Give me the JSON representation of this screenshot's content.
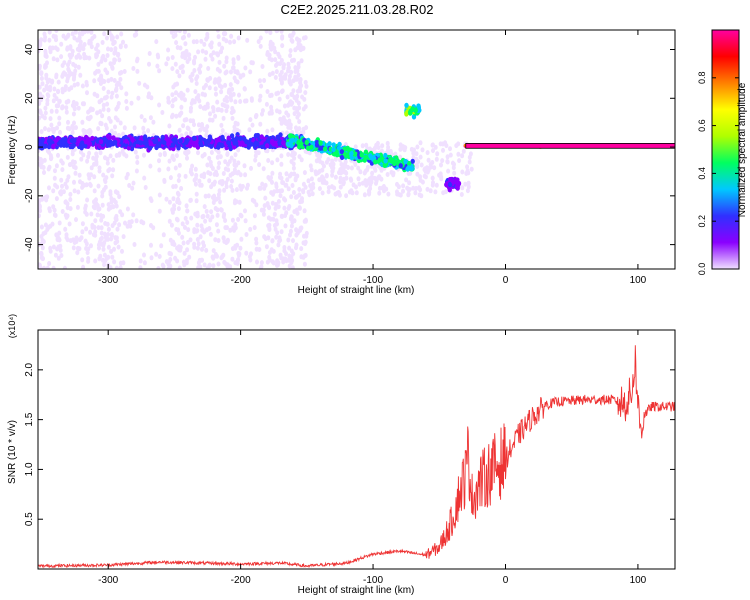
{
  "title": "C2E2.2025.211.03.28.R02",
  "chart_data": [
    {
      "type": "heatmap",
      "xlabel": "Height of straight line (km)",
      "ylabel": "Frequency (Hz)",
      "xlim": [
        -353,
        128
      ],
      "ylim": [
        -50,
        48
      ],
      "xticks": [
        -300,
        -200,
        -100,
        0,
        100
      ],
      "yticks": [
        40,
        20,
        0,
        -20,
        -40
      ],
      "colorbar": {
        "label": "Normalized spectral amplitude",
        "range": [
          0,
          1
        ],
        "ticks": [
          "0.0",
          "0.2",
          "0.4",
          "0.6",
          "0.8"
        ],
        "tick_values": [
          0,
          0.2,
          0.4,
          0.6,
          0.8
        ],
        "colors": [
          "#f0e0ff",
          "#8a00ff",
          "#3030ff",
          "#00c8ff",
          "#00ff60",
          "#b0ff00",
          "#ffff00",
          "#ff8000",
          "#ff0000",
          "#ff00a0"
        ]
      },
      "features": [
        {
          "x_range": [
            -353,
            -150
          ],
          "y": 2,
          "amplitude": 0.25
        },
        {
          "x_range": [
            -165,
            -70
          ],
          "y_start": 3,
          "y_end": -8,
          "amplitude": 0.45
        },
        {
          "x_range": [
            -75,
            -65
          ],
          "y": 15,
          "amplitude": 0.5
        },
        {
          "x_range": [
            -45,
            -35
          ],
          "y": -15,
          "amplitude": 0.2
        },
        {
          "x_range": [
            -30,
            128
          ],
          "y": 0.5,
          "amplitude": 0.95
        }
      ]
    },
    {
      "type": "line",
      "xlabel": "Height of straight line (km)",
      "ylabel": "SNR (10 * v/v)",
      "yscale_label": "(x10⁴)",
      "xlim": [
        -353,
        128
      ],
      "ylim": [
        0,
        2.4
      ],
      "xticks": [
        -300,
        -200,
        -100,
        0,
        100
      ],
      "yticks": [
        0.5,
        1.0,
        1.5,
        2.0
      ],
      "ytick_labels": [
        "0.5",
        "1.0",
        "1.5",
        "2.0"
      ],
      "color": "#ee3333",
      "x": [
        -353,
        -300,
        -260,
        -200,
        -170,
        -150,
        -120,
        -100,
        -80,
        -60,
        -50,
        -45,
        -40,
        -35,
        -30,
        -28,
        -25,
        -20,
        -10,
        0,
        10,
        20,
        25,
        30,
        40,
        60,
        80,
        90,
        95,
        98,
        100,
        102,
        105,
        110,
        128
      ],
      "y": [
        0.03,
        0.04,
        0.07,
        0.05,
        0.06,
        0.03,
        0.06,
        0.15,
        0.18,
        0.14,
        0.22,
        0.35,
        0.5,
        0.75,
        0.95,
        1.15,
        0.7,
        0.85,
        1.0,
        1.1,
        1.35,
        1.52,
        1.58,
        1.65,
        1.68,
        1.7,
        1.7,
        1.66,
        1.75,
        2.1,
        1.65,
        1.4,
        1.55,
        1.63,
        1.63
      ]
    }
  ]
}
